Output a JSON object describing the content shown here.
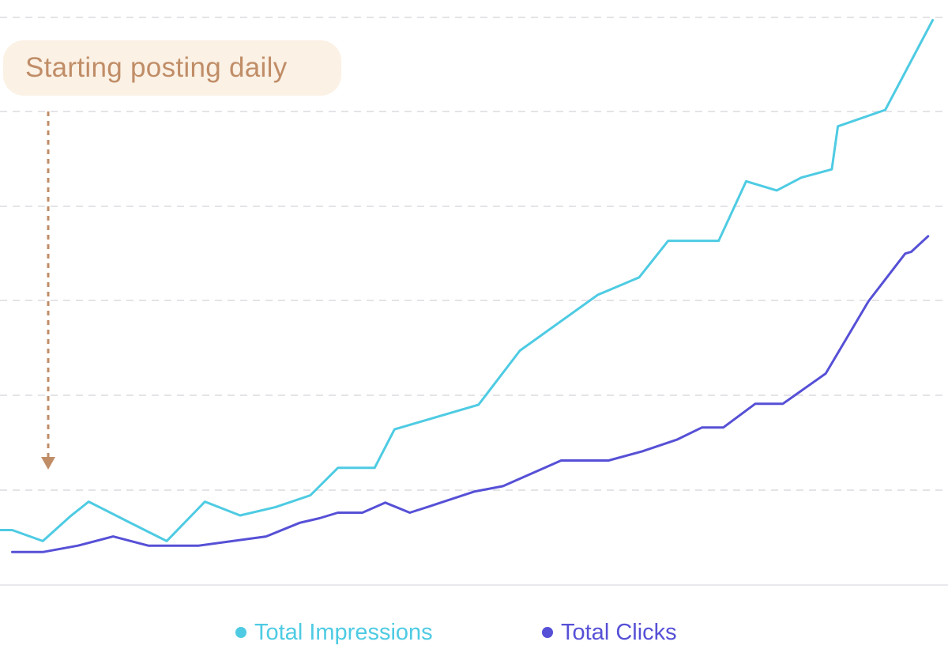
{
  "annotation": {
    "text": "Starting posting daily"
  },
  "legend": [
    {
      "label": "Total Impressions",
      "color": "#4ecbe3"
    },
    {
      "label": "Total Clicks",
      "color": "#5650d6"
    }
  ],
  "chart_data": {
    "type": "line",
    "title": "",
    "xlabel": "",
    "ylabel": "",
    "grid": true,
    "legend_position": "bottom-center",
    "xlim": [
      0,
      62
    ],
    "ylim": [
      0,
      62
    ],
    "series": [
      {
        "name": "Total Impressions",
        "color": "#4ecbe3",
        "points": [
          [
            0,
            6
          ],
          [
            0.8,
            6
          ],
          [
            2.8,
            4.8
          ],
          [
            4.6,
            7.5
          ],
          [
            5.8,
            9.1
          ],
          [
            8.4,
            6.9
          ],
          [
            10.9,
            4.8
          ],
          [
            13.4,
            9.1
          ],
          [
            15.7,
            7.6
          ],
          [
            18,
            8.5
          ],
          [
            20.3,
            9.8
          ],
          [
            22.1,
            12.8
          ],
          [
            24.5,
            12.8
          ],
          [
            25.8,
            17
          ],
          [
            31.3,
            19.7
          ],
          [
            34,
            25.6
          ],
          [
            39.1,
            31.7
          ],
          [
            41.8,
            33.6
          ],
          [
            43.7,
            37.6
          ],
          [
            47,
            37.6
          ],
          [
            48.8,
            44.1
          ],
          [
            50.8,
            43.1
          ],
          [
            52.4,
            44.5
          ],
          [
            54.4,
            45.4
          ],
          [
            54.8,
            50.1
          ],
          [
            57.9,
            51.9
          ],
          [
            61,
            61.7
          ]
        ]
      },
      {
        "name": "Total Clicks",
        "color": "#5650d6",
        "points": [
          [
            0.8,
            3.6
          ],
          [
            2.8,
            3.6
          ],
          [
            5.1,
            4.3
          ],
          [
            7.4,
            5.3
          ],
          [
            9.7,
            4.3
          ],
          [
            13,
            4.3
          ],
          [
            17.4,
            5.3
          ],
          [
            19.6,
            6.8
          ],
          [
            20.9,
            7.3
          ],
          [
            22.1,
            7.9
          ],
          [
            23.7,
            7.9
          ],
          [
            25.2,
            9
          ],
          [
            26.8,
            7.9
          ],
          [
            28.1,
            8.6
          ],
          [
            31,
            10.2
          ],
          [
            32.9,
            10.8
          ],
          [
            36.7,
            13.6
          ],
          [
            39.8,
            13.6
          ],
          [
            42,
            14.6
          ],
          [
            44.3,
            15.9
          ],
          [
            45.9,
            17.2
          ],
          [
            47.3,
            17.2
          ],
          [
            49.4,
            19.8
          ],
          [
            51.2,
            19.8
          ],
          [
            54,
            23.1
          ],
          [
            56.8,
            31
          ],
          [
            59.2,
            36.2
          ],
          [
            59.6,
            36.4
          ],
          [
            60.7,
            38.1
          ]
        ]
      }
    ]
  }
}
